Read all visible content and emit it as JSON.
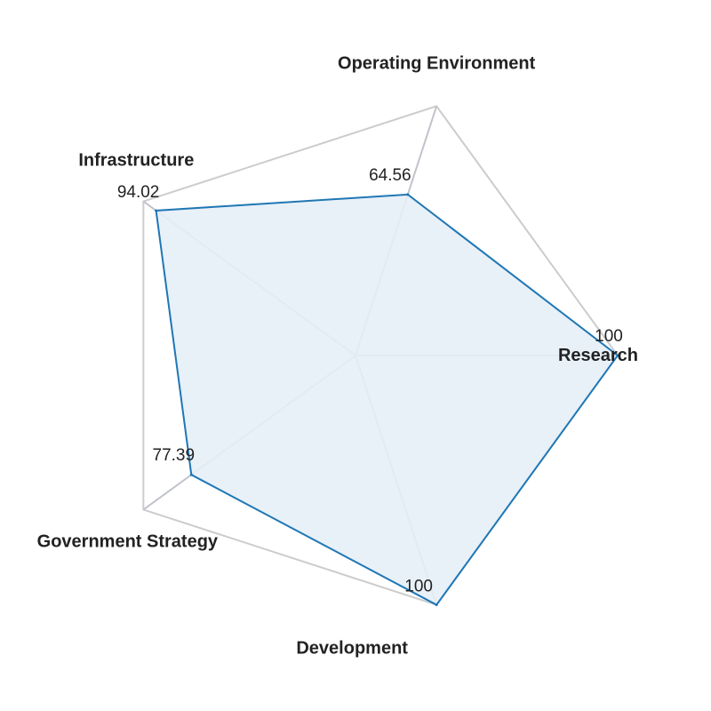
{
  "chart_data": {
    "type": "radar",
    "categories": [
      "Research",
      "Operating Environment",
      "Infrastructure",
      "Government Strategy",
      "Development"
    ],
    "values": [
      100,
      64.56,
      94.02,
      77.39,
      100
    ],
    "value_labels": [
      "100",
      "64.56",
      "94.02",
      "77.39",
      "100"
    ],
    "range": [
      0,
      100
    ],
    "grid": true,
    "legend": "none",
    "title": ""
  },
  "colors": {
    "series_line": "#1f77b4",
    "series_fill": "#e6eef7",
    "grid": "#cccccc",
    "spoke": "#c0c4ca",
    "text": "#222222"
  }
}
